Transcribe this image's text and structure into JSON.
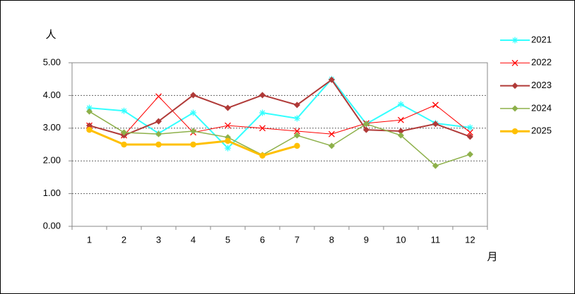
{
  "chart_data": {
    "type": "line",
    "y_label": "人",
    "x_label": "月",
    "categories": [
      "1",
      "2",
      "3",
      "4",
      "5",
      "6",
      "7",
      "8",
      "9",
      "10",
      "11",
      "12"
    ],
    "ylim": [
      0,
      5
    ],
    "yticks": [
      {
        "value": 0,
        "label": "0.00"
      },
      {
        "value": 1,
        "label": "1.00"
      },
      {
        "value": 2,
        "label": "2.00"
      },
      {
        "value": 3,
        "label": "3.00"
      },
      {
        "value": 4,
        "label": "4.00"
      },
      {
        "value": 5,
        "label": "5.00"
      }
    ],
    "grid": true,
    "legend": "right",
    "series": [
      {
        "name": "2021",
        "color": "#33ffff",
        "marker": "asterisk",
        "line_width": 2,
        "values": [
          3.62,
          3.53,
          2.84,
          3.47,
          2.39,
          3.47,
          3.3,
          4.5,
          3.13,
          3.73,
          3.15,
          3.02
        ]
      },
      {
        "name": "2022",
        "color": "#ff0000",
        "marker": "x",
        "line_width": 1,
        "values": [
          3.08,
          2.78,
          3.97,
          2.87,
          3.08,
          3.0,
          2.91,
          2.82,
          3.15,
          3.25,
          3.71,
          2.87
        ]
      },
      {
        "name": "2023",
        "color": "#b03a38",
        "marker": "diamond",
        "line_width": 2,
        "values": [
          3.08,
          2.78,
          3.21,
          4.01,
          3.62,
          4.01,
          3.71,
          4.48,
          2.95,
          2.91,
          3.13,
          2.74
        ]
      },
      {
        "name": "2024",
        "color": "#8db04a",
        "marker": "diamond",
        "line_width": 1.5,
        "values": [
          3.51,
          2.87,
          2.82,
          2.91,
          2.72,
          2.18,
          2.78,
          2.46,
          3.13,
          2.78,
          1.85,
          2.2
        ]
      },
      {
        "name": "2025",
        "color": "#ffc000",
        "marker": "circle",
        "line_width": 3,
        "values": [
          2.95,
          2.5,
          2.5,
          2.5,
          2.61,
          2.16,
          2.46,
          null,
          null,
          null,
          null,
          null
        ]
      }
    ]
  }
}
